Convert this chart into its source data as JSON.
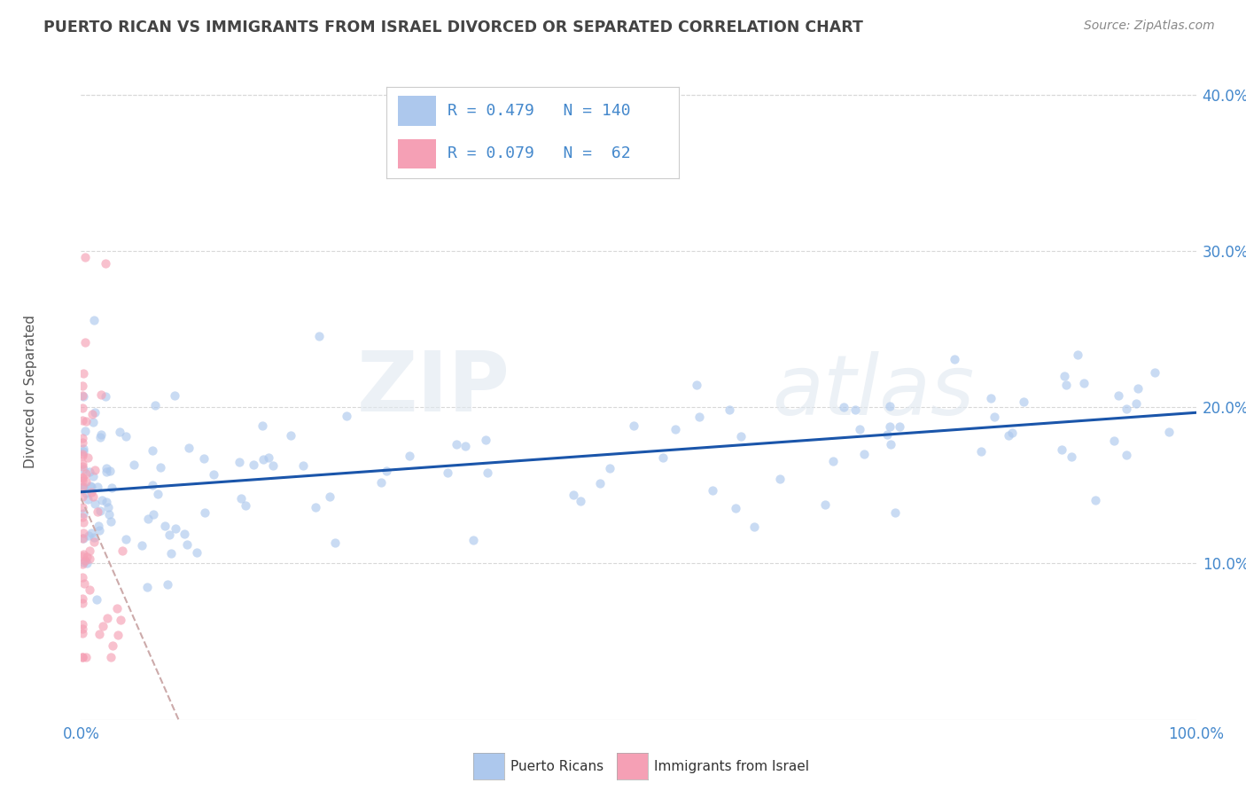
{
  "title": "PUERTO RICAN VS IMMIGRANTS FROM ISRAEL DIVORCED OR SEPARATED CORRELATION CHART",
  "source": "Source: ZipAtlas.com",
  "ylabel": "Divorced or Separated",
  "legend_label1": "Puerto Ricans",
  "legend_label2": "Immigrants from Israel",
  "R1": 0.479,
  "N1": 140,
  "R2": 0.079,
  "N2": 62,
  "color1": "#adc8ed",
  "color2": "#f5a0b5",
  "line_color1": "#1a55aa",
  "line_color2": "#e06080",
  "dashed_line_color": "#ccaaaa",
  "background": "#ffffff",
  "grid_color": "#d8d8d8",
  "xlim": [
    0.0,
    1.0
  ],
  "ylim": [
    0.0,
    0.42
  ],
  "yticks": [
    0.1,
    0.2,
    0.3,
    0.4
  ],
  "ytick_labels": [
    "10.0%",
    "20.0%",
    "30.0%",
    "40.0%"
  ],
  "watermark_zip": "ZIP",
  "watermark_atlas": "atlas",
  "title_color": "#444444",
  "axis_label_color": "#555555",
  "tick_label_color": "#4488cc",
  "source_color": "#888888",
  "legend_text_color": "#4488cc"
}
